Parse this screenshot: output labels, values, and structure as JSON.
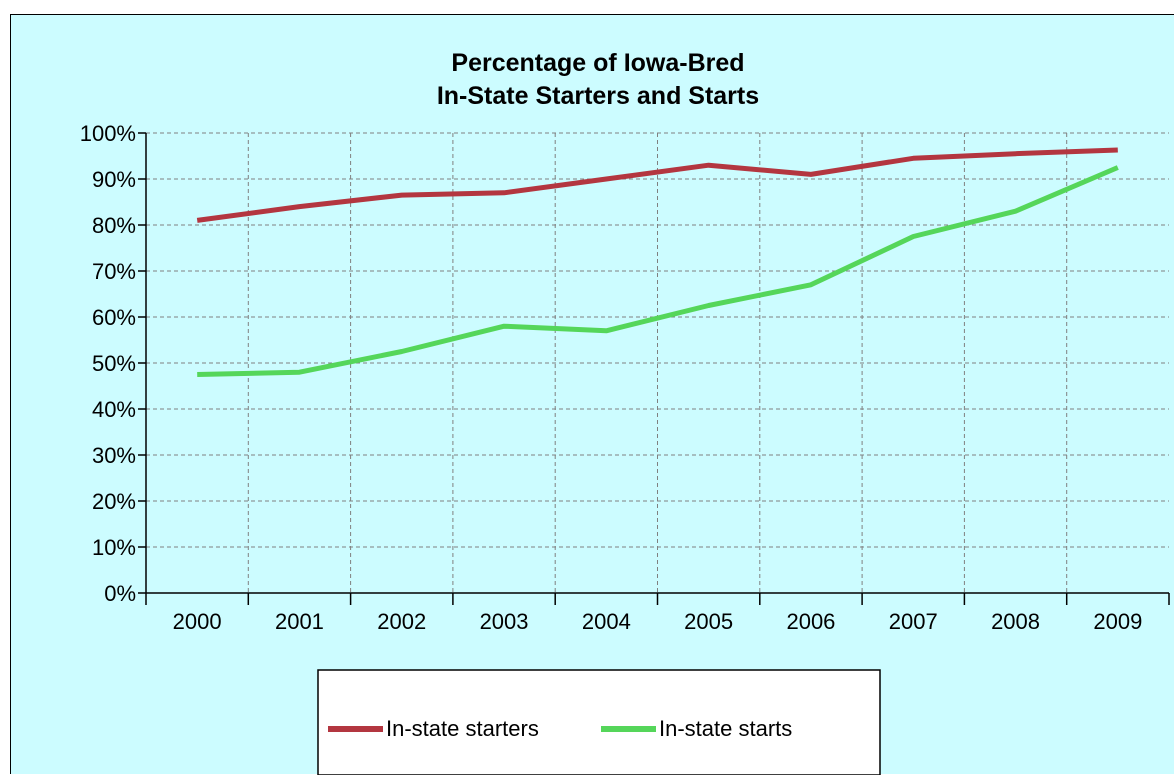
{
  "chart_data": {
    "type": "line",
    "title": [
      "Percentage of Iowa-Bred",
      "In-State Starters and Starts"
    ],
    "xlabel": "",
    "ylabel": "",
    "categories": [
      "2000",
      "2001",
      "2002",
      "2003",
      "2004",
      "2005",
      "2006",
      "2007",
      "2008",
      "2009"
    ],
    "ylim": [
      0,
      100
    ],
    "yticks": [
      0,
      10,
      20,
      30,
      40,
      50,
      60,
      70,
      80,
      90,
      100
    ],
    "ytick_labels": [
      "0%",
      "10%",
      "20%",
      "30%",
      "40%",
      "50%",
      "60%",
      "70%",
      "80%",
      "90%",
      "100%"
    ],
    "grid": true,
    "legend_position": "bottom",
    "series": [
      {
        "name": "In-state starters",
        "color": "#b33640",
        "values": [
          81,
          84,
          86.5,
          87,
          90,
          93,
          91,
          94.5,
          95.5,
          96.3
        ]
      },
      {
        "name": "In-state starts",
        "color": "#55d65a",
        "values": [
          47.5,
          48,
          52.5,
          58,
          57,
          62.5,
          67,
          77.5,
          83,
          92.5
        ]
      }
    ],
    "colors": {
      "background": "#ccfcff",
      "grid": "#808080",
      "axis": "#000000"
    }
  }
}
